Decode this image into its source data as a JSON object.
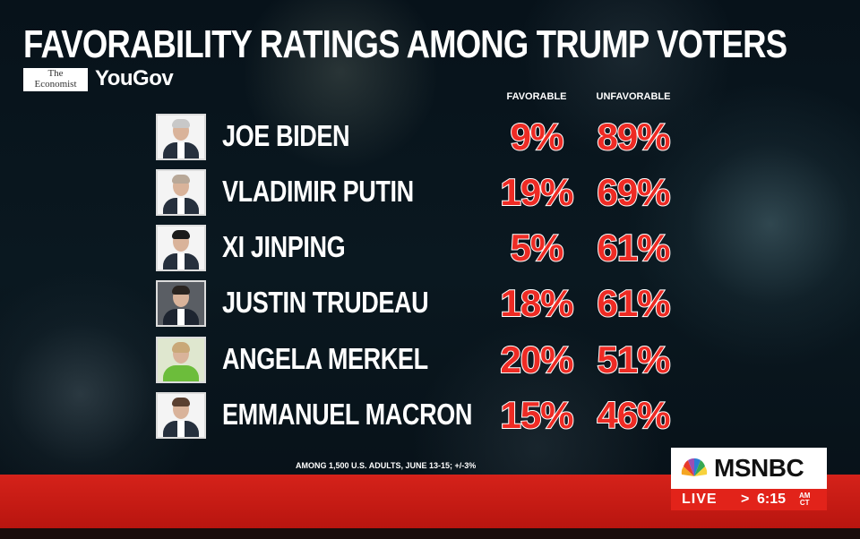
{
  "chart_data": {
    "type": "table",
    "title": "FAVORABILITY RATINGS AMONG TRUMP VOTERS",
    "columns": [
      "FAVORABLE",
      "UNFAVORABLE"
    ],
    "rows": [
      {
        "name": "JOE BIDEN",
        "favorable": "9%",
        "unfavorable": "89%"
      },
      {
        "name": "VLADIMIR PUTIN",
        "favorable": "19%",
        "unfavorable": "69%"
      },
      {
        "name": "XI JINPING",
        "favorable": "5%",
        "unfavorable": "61%"
      },
      {
        "name": "JUSTIN TRUDEAU",
        "favorable": "18%",
        "unfavorable": "61%"
      },
      {
        "name": "ANGELA MERKEL",
        "favorable": "20%",
        "unfavorable": "51%"
      },
      {
        "name": "EMMANUEL MACRON",
        "favorable": "15%",
        "unfavorable": "46%"
      }
    ],
    "footnote": "AMONG 1,500 U.S. ADULTS, JUNE 13-15; +/-3%"
  },
  "sources": {
    "economist_line1": "The",
    "economist_line2": "Economist",
    "yougov": "YouGov"
  },
  "broadcast": {
    "network": "MSNBC",
    "live": "LIVE",
    "arrow": ">",
    "time": "6:15",
    "ampm": "AM",
    "zone": "CT"
  },
  "colors": {
    "value_red": "#ee2b24",
    "bar_red": "#d5221a",
    "peacock": [
      "#f5a623",
      "#e8392a",
      "#9b4fb4",
      "#2a7fd4",
      "#35a853",
      "#f7d23c"
    ]
  }
}
